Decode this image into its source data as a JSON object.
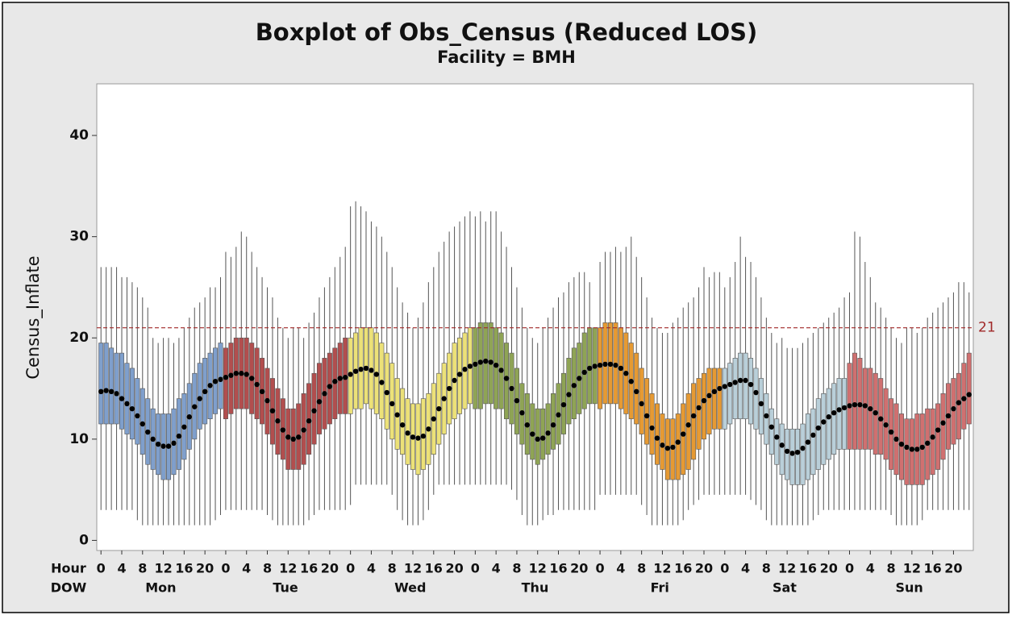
{
  "chart_data": {
    "type": "boxplot",
    "title": "Boxplot of Obs_Census (Reduced LOS)",
    "subtitle": "Facility = BMH",
    "y_label": "Census_Inflate",
    "hour_axis_label": "Hour",
    "dow_axis_label": "DOW",
    "ylim": [
      -1,
      45.1
    ],
    "yticks": [
      0,
      10,
      20,
      30,
      40
    ],
    "hour_ticks": [
      0,
      4,
      8,
      12,
      16,
      20
    ],
    "reference_line": {
      "value": 21,
      "label": "21",
      "color": "#a02828"
    },
    "mean_color": "#000000",
    "series": [
      {
        "name": "Mon",
        "color": "#7f9fcc",
        "mean": [
          14.7,
          14.8,
          14.7,
          14.5,
          14.0,
          13.5,
          13.0,
          12.3,
          11.5,
          10.7,
          10.0,
          9.5,
          9.3,
          9.3,
          9.6,
          10.3,
          11.2,
          12.2,
          13.2,
          14.0,
          14.7,
          15.3,
          15.7,
          15.9
        ],
        "q1": [
          11.5,
          11.5,
          11.5,
          11.5,
          11,
          10.5,
          10,
          9.5,
          8.5,
          7.5,
          7,
          6.5,
          6,
          6,
          6.5,
          7,
          8,
          9,
          10,
          11,
          11.5,
          12,
          12.5,
          13
        ],
        "q3": [
          19.5,
          19.5,
          19,
          18.5,
          18.5,
          17.5,
          17,
          16,
          15,
          14,
          13,
          12.5,
          12.5,
          12.5,
          13,
          14,
          14.5,
          15.5,
          16.5,
          17.5,
          18,
          18.5,
          19,
          19.5
        ],
        "whisker_low": [
          3,
          3,
          3,
          3,
          3,
          3,
          3,
          2,
          1.5,
          1.5,
          1.5,
          1.5,
          1.5,
          1.5,
          1.5,
          1.5,
          1.5,
          1.5,
          1.5,
          1.5,
          1.5,
          1.5,
          2,
          2.5
        ],
        "whisker_high": [
          27,
          27,
          27,
          27,
          26,
          26,
          25.5,
          25,
          24,
          23,
          20,
          19.5,
          20,
          20,
          19.5,
          20,
          21,
          22,
          23,
          23.5,
          24,
          25,
          25,
          26
        ]
      },
      {
        "name": "Tue",
        "color": "#b24e4e",
        "mean": [
          16.1,
          16.3,
          16.5,
          16.5,
          16.4,
          16.0,
          15.4,
          14.7,
          13.8,
          12.8,
          11.8,
          10.9,
          10.2,
          10.0,
          10.2,
          10.9,
          11.8,
          12.8,
          13.7,
          14.5,
          15.2,
          15.7,
          16.0,
          16.1
        ],
        "q1": [
          12,
          12.5,
          13,
          13,
          13,
          12.5,
          12,
          11.5,
          10.5,
          9.5,
          8.5,
          8,
          7,
          7,
          7,
          7.5,
          8.5,
          9.5,
          10.5,
          11,
          11.5,
          12,
          12.5,
          12.5
        ],
        "q3": [
          19,
          19.5,
          20,
          20,
          20,
          19.5,
          19,
          18,
          17,
          16,
          15,
          14,
          13,
          13,
          13.5,
          14.5,
          15.5,
          16.5,
          17.5,
          18,
          18.5,
          19,
          19.5,
          20
        ],
        "whisker_low": [
          3,
          3,
          3,
          3,
          3,
          3,
          3,
          3,
          2.5,
          2,
          1.5,
          1.5,
          1.5,
          1.5,
          1.5,
          1.5,
          2,
          2.5,
          3,
          3,
          3,
          3,
          3,
          3
        ],
        "whisker_high": [
          28.5,
          28,
          29,
          30.5,
          30,
          28.5,
          27,
          26,
          25,
          24,
          22,
          21,
          20,
          21,
          21,
          20,
          21.5,
          22.5,
          24,
          25,
          26,
          27,
          28,
          29
        ]
      },
      {
        "name": "Wed",
        "color": "#ece178",
        "mean": [
          16.4,
          16.7,
          16.9,
          17.0,
          16.8,
          16.4,
          15.6,
          14.6,
          13.5,
          12.4,
          11.4,
          10.6,
          10.2,
          10.1,
          10.3,
          11.0,
          12.0,
          13.0,
          14.0,
          15.0,
          15.8,
          16.4,
          16.9,
          17.2
        ],
        "q1": [
          12.5,
          13,
          13,
          13.5,
          13,
          12.5,
          12,
          11,
          10,
          9,
          8.5,
          7.5,
          7,
          6.5,
          7,
          7.5,
          8.5,
          9.5,
          10.5,
          11.5,
          12,
          12.5,
          13,
          13.5
        ],
        "q3": [
          20,
          20.5,
          21,
          21,
          21,
          20.5,
          19.5,
          18.5,
          17.5,
          16,
          15,
          14,
          13.5,
          13.5,
          14,
          14.5,
          15.5,
          16.5,
          17.5,
          18.5,
          19.5,
          20,
          20.5,
          21
        ],
        "whisker_low": [
          3.5,
          5.5,
          5.5,
          5.5,
          5.5,
          5.5,
          5.5,
          5.5,
          4.5,
          3,
          2,
          1.5,
          1.5,
          1.5,
          2,
          3,
          4.5,
          5.5,
          5.5,
          5.5,
          5.5,
          5.5,
          5.5,
          5.5
        ],
        "whisker_high": [
          33,
          33.5,
          33,
          32.5,
          31.5,
          31,
          30,
          28.5,
          27,
          25,
          23.5,
          22.5,
          21,
          22,
          23.5,
          25.5,
          27,
          28.5,
          29.5,
          30.5,
          31,
          31.5,
          32,
          32.5
        ]
      },
      {
        "name": "Thu",
        "color": "#8fa455",
        "mean": [
          17.4,
          17.6,
          17.7,
          17.6,
          17.3,
          16.8,
          16.0,
          15.0,
          13.8,
          12.6,
          11.4,
          10.5,
          10.0,
          10.1,
          10.6,
          11.4,
          12.4,
          13.4,
          14.4,
          15.3,
          16.0,
          16.6,
          17.0,
          17.2
        ],
        "q1": [
          13,
          13,
          13.5,
          13.5,
          13,
          13,
          12,
          11.5,
          10.5,
          9.5,
          8.5,
          8,
          7.5,
          8,
          8.5,
          9,
          9.5,
          10.5,
          11.5,
          12,
          12.5,
          13,
          13.5,
          13.5
        ],
        "q3": [
          21,
          21.5,
          21.5,
          21.5,
          21,
          20.5,
          19.5,
          18.5,
          17,
          15.5,
          14.5,
          13.5,
          13,
          13,
          13.5,
          14.5,
          15.5,
          16.5,
          18,
          19,
          19.5,
          20.5,
          21,
          21
        ],
        "whisker_low": [
          5.5,
          5.5,
          5.5,
          5.5,
          5.5,
          5.5,
          5.5,
          5,
          4,
          2.5,
          1.5,
          1.5,
          1.5,
          2,
          2.5,
          2.5,
          3,
          3,
          3,
          3,
          3,
          3,
          3,
          3
        ],
        "whisker_high": [
          32,
          32.5,
          31.5,
          32.5,
          32.5,
          30.5,
          29,
          27,
          25,
          23,
          21,
          20,
          19.5,
          21,
          22,
          23,
          24,
          24.5,
          25.5,
          26,
          26.5,
          26.5,
          25.5,
          21
        ]
      },
      {
        "name": "Fri",
        "color": "#e69a33",
        "mean": [
          17.3,
          17.4,
          17.4,
          17.3,
          17.0,
          16.5,
          15.7,
          14.7,
          13.5,
          12.3,
          11.1,
          10.1,
          9.4,
          9.1,
          9.2,
          9.7,
          10.5,
          11.4,
          12.3,
          13.1,
          13.8,
          14.3,
          14.7,
          15.0
        ],
        "q1": [
          13,
          13.5,
          13.5,
          13.5,
          13,
          12.5,
          12,
          11.5,
          10.5,
          9.5,
          8.5,
          7.5,
          7,
          6,
          6,
          6,
          6.5,
          7,
          8,
          9,
          10,
          10.5,
          11,
          11
        ],
        "q3": [
          21,
          21.5,
          21.5,
          21.5,
          21,
          20.5,
          19.5,
          18.5,
          17,
          16,
          14.5,
          13.5,
          12.5,
          12,
          12,
          12.5,
          13.5,
          14.5,
          15.5,
          16,
          16.5,
          17,
          17,
          17
        ],
        "whisker_low": [
          4.5,
          4.5,
          4.5,
          4.5,
          4.5,
          4.5,
          4.5,
          4.5,
          3.5,
          2.5,
          1.5,
          1.5,
          1.5,
          1.5,
          1.5,
          1.5,
          2,
          3,
          3.5,
          4,
          4.5,
          4.5,
          4.5,
          4.5
        ],
        "whisker_high": [
          27.5,
          28.5,
          28.5,
          29,
          28.5,
          29,
          30,
          28,
          26,
          24,
          22,
          21,
          20.5,
          20.5,
          21.5,
          22,
          23,
          23.5,
          24,
          25,
          27,
          26,
          26.5,
          26.5
        ]
      },
      {
        "name": "Sat",
        "color": "#b9cfd9",
        "mean": [
          15.2,
          15.4,
          15.6,
          15.8,
          15.8,
          15.4,
          14.6,
          13.5,
          12.3,
          11.2,
          10.2,
          9.4,
          8.8,
          8.6,
          8.7,
          9.1,
          9.7,
          10.4,
          11.1,
          11.7,
          12.2,
          12.6,
          12.9,
          13.1
        ],
        "q1": [
          11,
          11.5,
          12,
          12,
          12,
          11.5,
          11,
          10.5,
          9.5,
          8.5,
          7.5,
          6.5,
          6,
          5.5,
          5.5,
          5.5,
          6,
          6.5,
          7,
          7.5,
          8,
          8.5,
          9,
          9
        ],
        "q3": [
          17,
          17.5,
          18,
          18.5,
          18.5,
          18,
          17,
          16,
          14.5,
          13,
          12,
          11.5,
          11,
          11,
          11,
          11.5,
          12.5,
          13,
          14,
          14.5,
          15,
          15.5,
          16,
          16
        ],
        "whisker_low": [
          4.5,
          4.5,
          4.5,
          4.5,
          4.5,
          4,
          3.5,
          3,
          2,
          1.5,
          1.5,
          1.5,
          1.5,
          1.5,
          1.5,
          1.5,
          1.5,
          2,
          2.5,
          3,
          3,
          3,
          3,
          3
        ],
        "whisker_high": [
          25,
          26,
          27.5,
          30,
          28,
          27.5,
          26,
          24,
          22,
          20.5,
          19.5,
          20,
          19,
          19,
          19,
          19.5,
          20,
          20.5,
          21,
          21.5,
          22,
          22.5,
          23,
          24
        ]
      },
      {
        "name": "Sun",
        "color": "#d07070",
        "mean": [
          13.3,
          13.4,
          13.4,
          13.3,
          13.0,
          12.6,
          12.0,
          11.4,
          10.7,
          10.0,
          9.5,
          9.2,
          9.0,
          9.0,
          9.2,
          9.6,
          10.2,
          10.9,
          11.6,
          12.3,
          13.0,
          13.6,
          14.0,
          14.4
        ],
        "q1": [
          9,
          9,
          9,
          9,
          9,
          8.5,
          8.5,
          8,
          7,
          6.5,
          6,
          5.5,
          5.5,
          5.5,
          5.5,
          6,
          6.5,
          7,
          8,
          9,
          9.5,
          10,
          11,
          11.5
        ],
        "q3": [
          17.5,
          18.5,
          18,
          17,
          17,
          16.5,
          16,
          15,
          14,
          13.5,
          12.5,
          12,
          12,
          12.5,
          12.5,
          13,
          13,
          13.5,
          14.5,
          15.5,
          16,
          16.5,
          17.5,
          18.5
        ],
        "whisker_low": [
          3,
          3,
          3,
          3,
          3,
          3,
          3,
          3,
          2.5,
          1.5,
          1.5,
          1.5,
          1.5,
          1.5,
          2,
          3,
          3,
          3,
          3,
          3,
          3,
          3,
          3,
          3
        ],
        "whisker_high": [
          24.5,
          30.5,
          30,
          27.5,
          26,
          23.5,
          23,
          22,
          21,
          20,
          19.5,
          21,
          21,
          20.5,
          21,
          22,
          22.5,
          23,
          23.5,
          24,
          24.5,
          25.5,
          25.5,
          24.5
        ]
      }
    ]
  }
}
